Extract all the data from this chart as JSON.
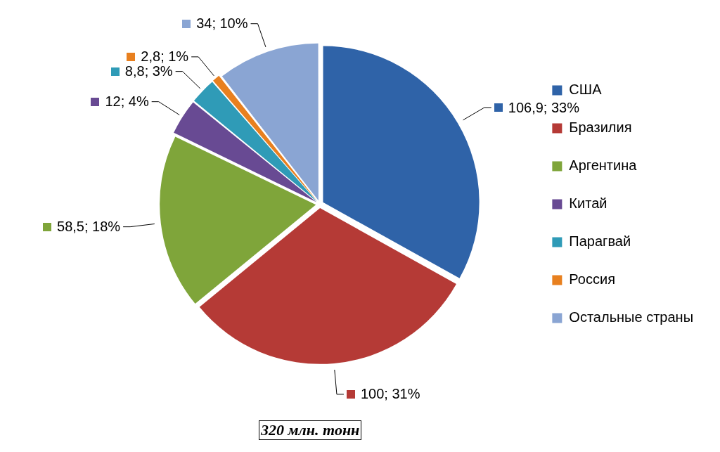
{
  "chart_data": {
    "type": "pie",
    "categories": [
      "США",
      "Бразилия",
      "Аргентина",
      "Китай",
      "Парагвай",
      "Россия",
      "Остальные страны"
    ],
    "values": [
      106.9,
      100,
      58.5,
      12,
      8.8,
      2.8,
      34
    ],
    "value_labels": [
      "106,9; 33%",
      "100; 31%",
      "58,5; 18%",
      "12; 4%",
      "8,8; 3%",
      "2,8; 1%",
      "34; 10%"
    ],
    "colors": [
      "#2f63a8",
      "#b53a36",
      "#7fa53a",
      "#684a93",
      "#2f9bb7",
      "#e8801f",
      "#8aa5d3"
    ],
    "legend": "right",
    "annotations": [
      "320 млн. тонн"
    ]
  }
}
